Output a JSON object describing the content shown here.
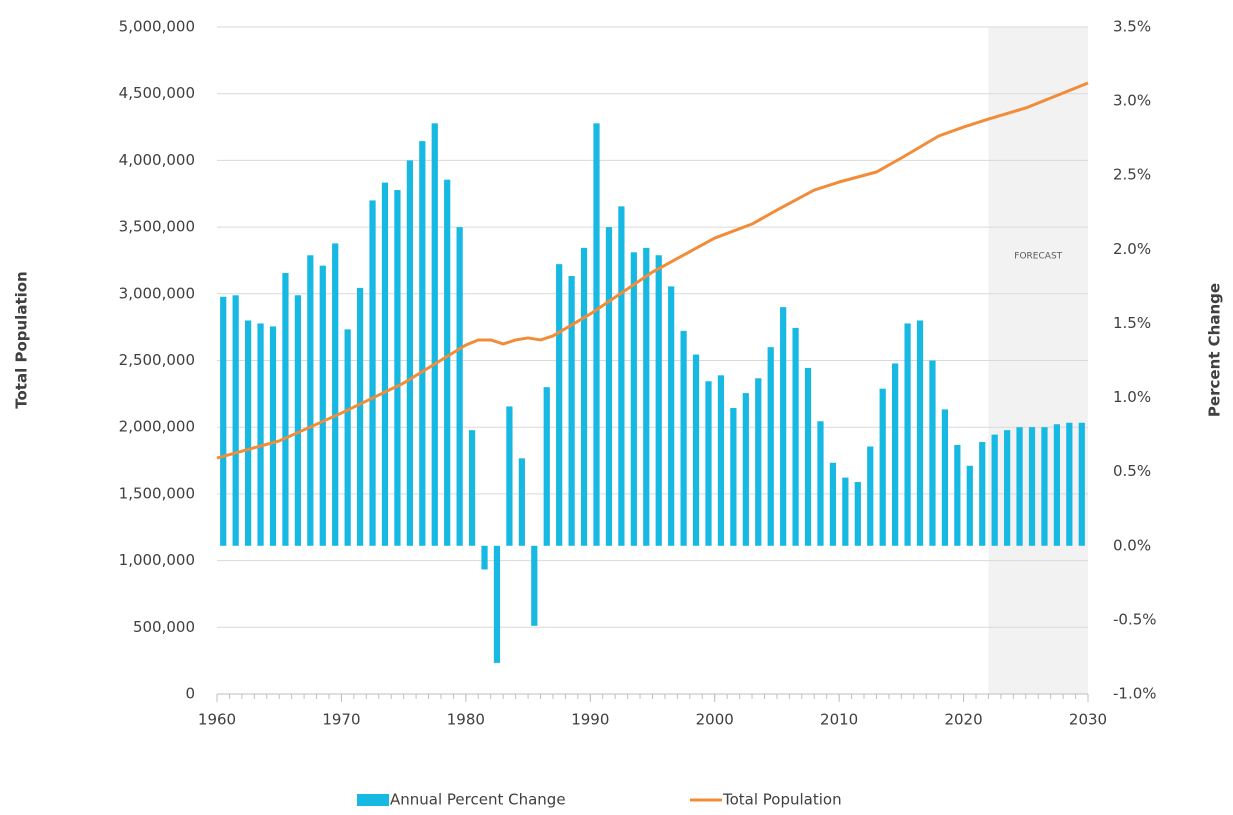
{
  "chart_data": {
    "type": "combo",
    "y_title": "Total Population",
    "y2_title": "Percent Change",
    "annotation": "FORECAST",
    "forecast_from": 2022,
    "forecast_color": "#f2f2f2",
    "grid": true,
    "legend": "bottom",
    "xlim": [
      1960,
      2030
    ],
    "xticks": [
      1960,
      1970,
      1980,
      1990,
      2000,
      2010,
      2020,
      2030
    ],
    "ylim": [
      0,
      5000000
    ],
    "yticks": [
      0,
      {
        "value": 500000,
        "label": "500,000"
      },
      {
        "value": 1000000,
        "label": "1,000,000"
      },
      {
        "value": 1500000,
        "label": "1,500,000"
      },
      {
        "value": 2000000,
        "label": "2,000,000"
      },
      {
        "value": 2500000,
        "label": "2,500,000"
      },
      {
        "value": 3000000,
        "label": "3,000,000"
      },
      {
        "value": 3500000,
        "label": "3,500,000"
      },
      {
        "value": 4000000,
        "label": "4,000,000"
      },
      {
        "value": 4500000,
        "label": "4,500,000"
      },
      {
        "value": 5000000,
        "label": "5,000,000"
      }
    ],
    "y2lim": [
      -1.0,
      3.5
    ],
    "y2ticks": [
      {
        "value": -1.0,
        "label": "-1.0%"
      },
      {
        "value": -0.5,
        "label": "-0.5%"
      },
      {
        "value": 0,
        "label": "0.0%"
      },
      {
        "value": 0.5,
        "label": "0.5%"
      },
      {
        "value": 1.0,
        "label": "1.0%"
      },
      {
        "value": 1.5,
        "label": "1.5%"
      },
      {
        "value": 2.0,
        "label": "2.0%"
      },
      {
        "value": 2.5,
        "label": "2.5%"
      },
      {
        "value": 3.0,
        "label": "3.0%"
      },
      {
        "value": 3.5,
        "label": "3.5%"
      }
    ],
    "series": [
      {
        "name": "Annual Percent Change",
        "type": "bar",
        "axis": "y2",
        "color": "#17b8e2",
        "x": [
          1961,
          1962,
          1963,
          1964,
          1965,
          1966,
          1967,
          1968,
          1969,
          1970,
          1971,
          1972,
          1973,
          1974,
          1975,
          1976,
          1977,
          1978,
          1979,
          1980,
          1981,
          1982,
          1983,
          1984,
          1985,
          1986,
          1987,
          1988,
          1989,
          1990,
          1991,
          1992,
          1993,
          1994,
          1995,
          1996,
          1997,
          1998,
          1999,
          2000,
          2001,
          2002,
          2003,
          2004,
          2005,
          2006,
          2007,
          2008,
          2009,
          2010,
          2011,
          2012,
          2013,
          2014,
          2015,
          2016,
          2017,
          2018,
          2019,
          2020,
          2021,
          2022,
          2023,
          2024,
          2025,
          2026,
          2027,
          2028,
          2029,
          2030
        ],
        "values": [
          1.68,
          1.69,
          1.52,
          1.5,
          1.48,
          1.84,
          1.69,
          1.96,
          1.89,
          2.04,
          1.46,
          1.74,
          2.33,
          2.45,
          2.4,
          2.6,
          2.73,
          2.85,
          2.47,
          2.15,
          0.78,
          -0.16,
          -0.79,
          0.94,
          0.59,
          -0.54,
          1.07,
          1.9,
          1.82,
          2.01,
          2.85,
          2.15,
          2.29,
          1.98,
          2.01,
          1.96,
          1.75,
          1.45,
          1.29,
          1.11,
          1.15,
          0.93,
          1.03,
          1.13,
          1.34,
          1.61,
          1.47,
          1.2,
          0.84,
          0.56,
          0.46,
          0.43,
          0.67,
          1.06,
          1.23,
          1.5,
          1.52,
          1.25,
          0.92,
          0.68,
          0.54,
          0.7,
          0.75,
          0.78,
          0.8,
          0.8,
          0.8,
          0.82,
          0.83,
          0.83
        ]
      },
      {
        "name": "Total Population",
        "type": "line",
        "axis": "y",
        "color": "#f28c38",
        "x": [
          1960,
          1965,
          1970,
          1975,
          1980,
          1981,
          1982,
          1983,
          1984,
          1985,
          1986,
          1987,
          1990,
          1995,
          2000,
          2003,
          2005,
          2008,
          2010,
          2013,
          2015,
          2018,
          2020,
          2022,
          2025,
          2030
        ],
        "values": [
          1769000,
          1897000,
          2106000,
          2331000,
          2616000,
          2654000,
          2654000,
          2624000,
          2654000,
          2669000,
          2654000,
          2684000,
          2849000,
          3163000,
          3418000,
          3523000,
          3628000,
          3778000,
          3838000,
          3913000,
          4018000,
          4183000,
          4250000,
          4310000,
          4393000,
          4580000
        ]
      }
    ]
  }
}
